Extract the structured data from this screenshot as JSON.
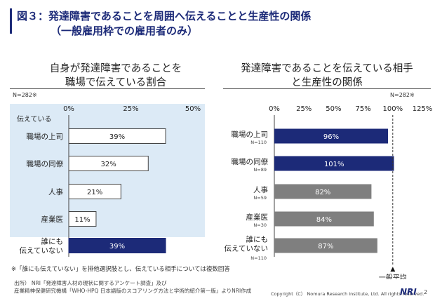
{
  "title": {
    "line1": "図３：発達障害であることを周囲へ伝えることと生産性の関係",
    "line2": "（一般雇用枠での雇用者のみ）"
  },
  "left_panel": {
    "subtitle_line1": "自身が発達障害であることを",
    "subtitle_line2": "職場で伝えている割合",
    "n_label": "N=282※",
    "group_label": "伝えている"
  },
  "right_panel": {
    "subtitle_line1": "発達障害であることを伝えている相手",
    "subtitle_line2": "と生産性の関係",
    "n_label": "N=282※",
    "avg_label": "一般平均",
    "avg_marker": "▲"
  },
  "notes": {
    "note1": "※「誰にも伝えていない」を排他選択肢とし、伝えている相手については複数回答",
    "source1": "出所）  NRI「発達障害人材の現状に関するアンケート調査」及び",
    "source2": "産業精神保健研究機構「WHO-HPQ 日本語版のスコアリング方法と学術的紹介第一版」よりNRI作成"
  },
  "footer": {
    "copyright": "Copyright（C） Nomura Research Institute, Ltd. All rights reserved.",
    "logo": "NRI",
    "page": "2"
  },
  "colors": {
    "navy": "#1c2a78",
    "gray": "#7f7f7f",
    "highlight": "#dceaf6",
    "title": "#1c2a78"
  },
  "chart_data": [
    {
      "type": "bar",
      "orientation": "horizontal",
      "categories": [
        "職場の上司",
        "職場の同僚",
        "人事",
        "産業医",
        "誰にも\n伝えていない"
      ],
      "values": [
        39,
        32,
        21,
        11,
        39
      ],
      "data_labels": [
        "39%",
        "32%",
        "21%",
        "11%",
        "39%"
      ],
      "xlim": [
        0,
        50
      ],
      "xticks": [
        "0%",
        "25%",
        "50%"
      ],
      "bar_styles": [
        "outline",
        "outline",
        "outline",
        "outline",
        "filled"
      ]
    },
    {
      "type": "bar",
      "orientation": "horizontal",
      "categories": [
        "職場の上司",
        "職場の同僚",
        "人事",
        "産業医",
        "誰にも\n伝えていない"
      ],
      "n_labels": [
        "N=110",
        "N=89",
        "N=59",
        "N=30",
        "N=110"
      ],
      "values": [
        96,
        101,
        82,
        84,
        87
      ],
      "data_labels": [
        "96%",
        "101%",
        "82%",
        "84%",
        "87%"
      ],
      "xlim": [
        0,
        125
      ],
      "xticks": [
        "0%",
        "25%",
        "50%",
        "75%",
        "100%",
        "125%"
      ],
      "reference_line": 100,
      "bar_colors": [
        "navy",
        "navy",
        "gray",
        "gray",
        "gray"
      ]
    }
  ]
}
